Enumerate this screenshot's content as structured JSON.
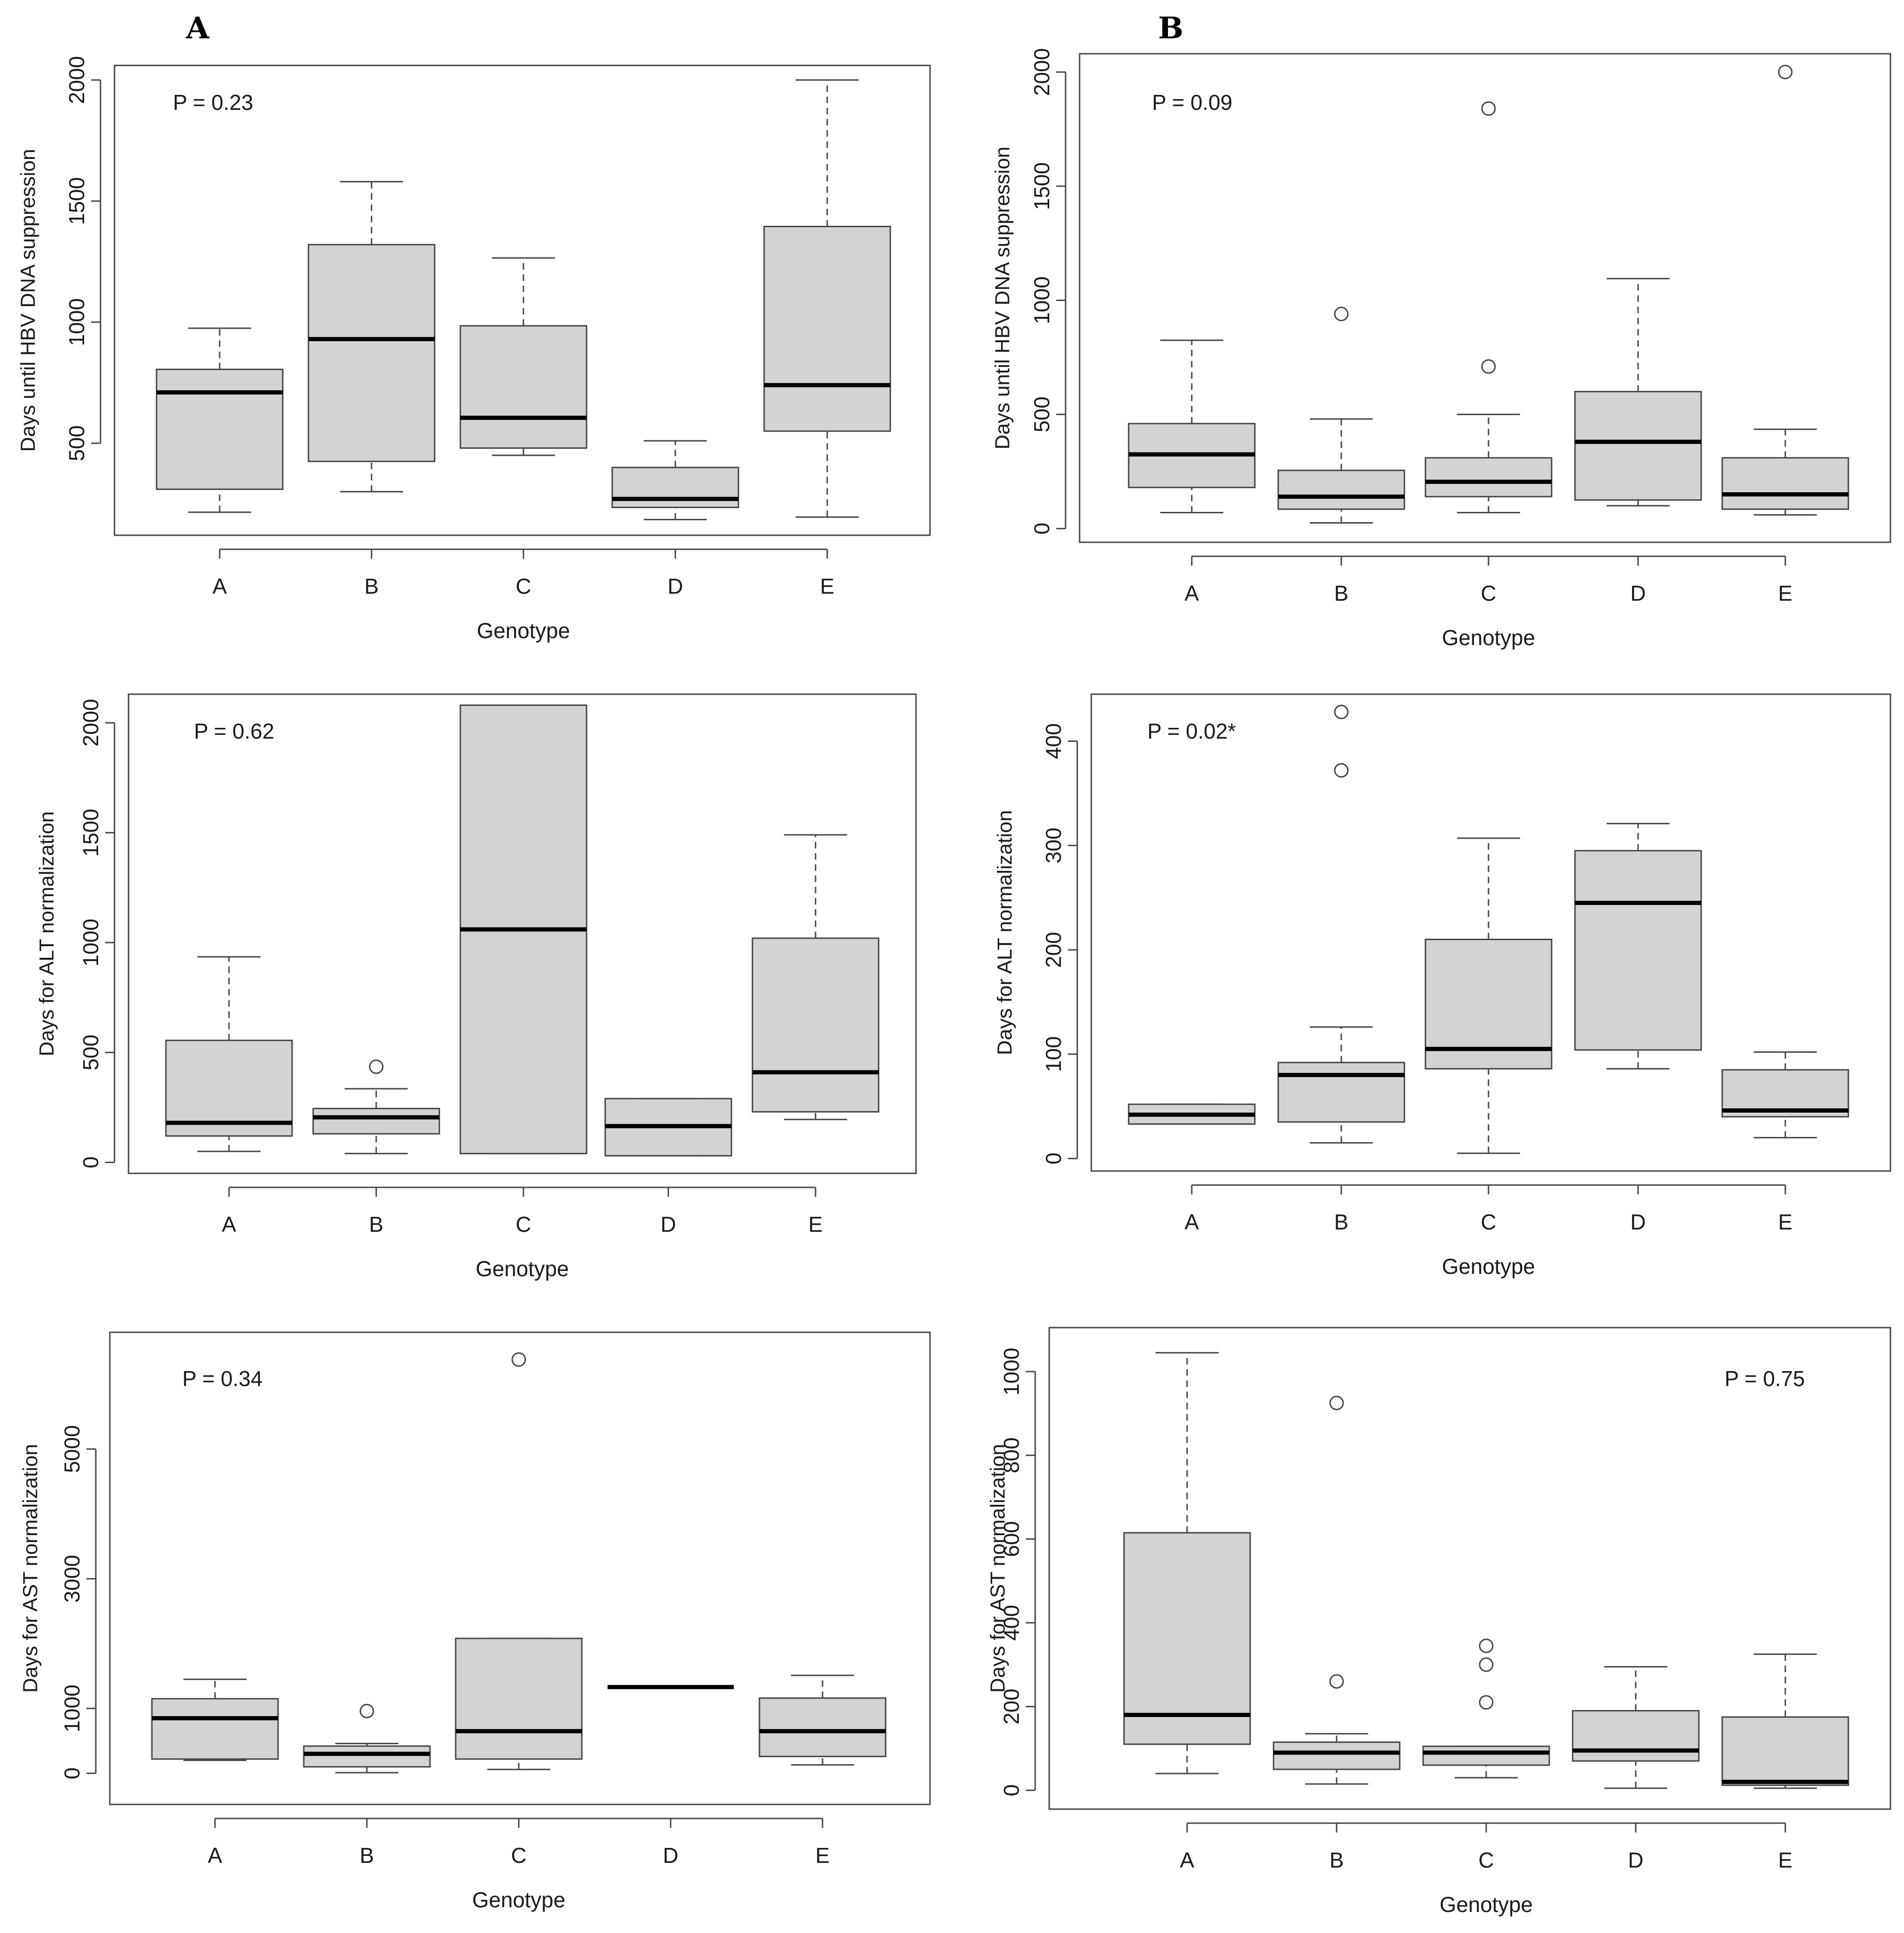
{
  "panel_labels": {
    "left": "A",
    "right": "B"
  },
  "colors": {
    "box_fill": "#d3d3d3",
    "stroke": "#444444",
    "median": "#000000",
    "background": "#ffffff"
  },
  "chart_data": [
    {
      "id": "A1",
      "type": "boxplot",
      "xlabel": "Genotype",
      "ylabel": "Days until HBV DNA suppression",
      "pvalue": "P = 0.23",
      "categories": [
        "A",
        "B",
        "C",
        "D",
        "E"
      ],
      "ylim": [
        120,
        2060
      ],
      "yticks": [
        500,
        1000,
        1500,
        2000
      ],
      "ytick_labels": [
        "500",
        "1000",
        "1500",
        "2000"
      ],
      "boxes": [
        {
          "min": 215,
          "q1": 310,
          "median": 710,
          "q3": 805,
          "max": 975,
          "outliers": []
        },
        {
          "min": 300,
          "q1": 425,
          "median": 930,
          "q3": 1320,
          "max": 1580,
          "outliers": []
        },
        {
          "min": 450,
          "q1": 480,
          "median": 605,
          "q3": 985,
          "max": 1265,
          "outliers": []
        },
        {
          "min": 185,
          "q1": 235,
          "median": 270,
          "q3": 400,
          "max": 510,
          "outliers": []
        },
        {
          "min": 195,
          "q1": 550,
          "median": 740,
          "q3": 1395,
          "max": 2000,
          "outliers": []
        }
      ]
    },
    {
      "id": "B1",
      "type": "boxplot",
      "xlabel": "Genotype",
      "ylabel": "Days until HBV DNA suppression",
      "pvalue": "P = 0.09",
      "categories": [
        "A",
        "B",
        "C",
        "D",
        "E"
      ],
      "ylim": [
        -60,
        2080
      ],
      "yticks": [
        0,
        500,
        1000,
        1500,
        2000
      ],
      "ytick_labels": [
        "0",
        "500",
        "1000",
        "1500",
        "2000"
      ],
      "boxes": [
        {
          "min": 70,
          "q1": 180,
          "median": 325,
          "q3": 460,
          "max": 825,
          "outliers": []
        },
        {
          "min": 25,
          "q1": 85,
          "median": 140,
          "q3": 255,
          "max": 480,
          "outliers": [
            940
          ]
        },
        {
          "min": 70,
          "q1": 140,
          "median": 205,
          "q3": 310,
          "max": 500,
          "outliers": [
            710,
            1840
          ]
        },
        {
          "min": 100,
          "q1": 125,
          "median": 380,
          "q3": 600,
          "max": 1095,
          "outliers": []
        },
        {
          "min": 60,
          "q1": 85,
          "median": 150,
          "q3": 310,
          "max": 435,
          "outliers": [
            2000
          ]
        }
      ]
    },
    {
      "id": "A2",
      "type": "boxplot",
      "xlabel": "Genotype",
      "ylabel": "Days for ALT normalization",
      "pvalue": "P = 0.62",
      "categories": [
        "A",
        "B",
        "C",
        "D",
        "E"
      ],
      "ylim": [
        -50,
        2130
      ],
      "yticks": [
        0,
        500,
        1000,
        1500,
        2000
      ],
      "ytick_labels": [
        "0",
        "500",
        "1000",
        "1500",
        "2000"
      ],
      "boxes": [
        {
          "min": 50,
          "q1": 120,
          "median": 180,
          "q3": 555,
          "max": 935,
          "outliers": []
        },
        {
          "min": 40,
          "q1": 130,
          "median": 205,
          "q3": 245,
          "max": 335,
          "outliers": [
            435
          ]
        },
        {
          "min": 40,
          "q1": 40,
          "median": 1060,
          "q3": 2080,
          "max": 2080,
          "outliers": []
        },
        {
          "min": 30,
          "q1": 30,
          "median": 165,
          "q3": 290,
          "max": 290,
          "outliers": []
        },
        {
          "min": 195,
          "q1": 230,
          "median": 410,
          "q3": 1020,
          "max": 1490,
          "outliers": []
        }
      ]
    },
    {
      "id": "B2",
      "type": "boxplot",
      "xlabel": "Genotype",
      "ylabel": "Days for ALT normalization",
      "pvalue": "P = 0.02*",
      "categories": [
        "A",
        "B",
        "C",
        "D",
        "E"
      ],
      "ylim": [
        -12,
        445
      ],
      "yticks": [
        0,
        100,
        200,
        300,
        400
      ],
      "ytick_labels": [
        "0",
        "100",
        "200",
        "300",
        "400"
      ],
      "boxes": [
        {
          "min": 33,
          "q1": 33,
          "median": 42,
          "q3": 52,
          "max": 52,
          "outliers": []
        },
        {
          "min": 15,
          "q1": 35,
          "median": 80,
          "q3": 92,
          "max": 126,
          "outliers": [
            372,
            428
          ]
        },
        {
          "min": 5,
          "q1": 86,
          "median": 105,
          "q3": 210,
          "max": 307,
          "outliers": []
        },
        {
          "min": 86,
          "q1": 104,
          "median": 245,
          "q3": 295,
          "max": 321,
          "outliers": []
        },
        {
          "min": 20,
          "q1": 40,
          "median": 46,
          "q3": 85,
          "max": 102,
          "outliers": []
        }
      ]
    },
    {
      "id": "A3",
      "type": "boxplot",
      "xlabel": "Genotype",
      "ylabel": "Days for AST normalization",
      "pvalue": "P = 0.34",
      "categories": [
        "A",
        "B",
        "C",
        "D",
        "E"
      ],
      "ylim": [
        -480,
        6800
      ],
      "yticks": [
        0,
        1000,
        3000,
        5000
      ],
      "ytick_labels": [
        "0",
        "1000",
        "3000",
        "5000"
      ],
      "boxes": [
        {
          "min": 200,
          "q1": 220,
          "median": 850,
          "q3": 1150,
          "max": 1450,
          "outliers": []
        },
        {
          "min": 10,
          "q1": 100,
          "median": 300,
          "q3": 420,
          "max": 460,
          "outliers": [
            960
          ]
        },
        {
          "min": 60,
          "q1": 220,
          "median": 650,
          "q3": 2080,
          "max": 2080,
          "outliers": [
            6380
          ]
        },
        {
          "min": 1330,
          "q1": 1330,
          "median": 1330,
          "q3": 1330,
          "max": 1330,
          "outliers": []
        },
        {
          "min": 130,
          "q1": 260,
          "median": 650,
          "q3": 1160,
          "max": 1510,
          "outliers": []
        }
      ]
    },
    {
      "id": "B3",
      "type": "boxplot",
      "xlabel": "Genotype",
      "ylabel": "Days for AST normalization",
      "pvalue": "P = 0.75",
      "categories": [
        "A",
        "B",
        "C",
        "D",
        "E"
      ],
      "ylim": [
        -45,
        1105
      ],
      "yticks": [
        0,
        200,
        400,
        600,
        800,
        1000
      ],
      "ytick_labels": [
        "0",
        "200",
        "400",
        "600",
        "800",
        "1000"
      ],
      "boxes": [
        {
          "min": 40,
          "q1": 110,
          "median": 180,
          "q3": 615,
          "max": 1045,
          "outliers": []
        },
        {
          "min": 15,
          "q1": 50,
          "median": 90,
          "q3": 115,
          "max": 135,
          "outliers": [
            260,
            925
          ]
        },
        {
          "min": 30,
          "q1": 60,
          "median": 90,
          "q3": 105,
          "max": 105,
          "outliers": [
            210,
            300,
            345
          ]
        },
        {
          "min": 5,
          "q1": 70,
          "median": 95,
          "q3": 190,
          "max": 295,
          "outliers": []
        },
        {
          "min": 5,
          "q1": 12,
          "median": 20,
          "q3": 175,
          "max": 325,
          "outliers": []
        }
      ]
    }
  ]
}
